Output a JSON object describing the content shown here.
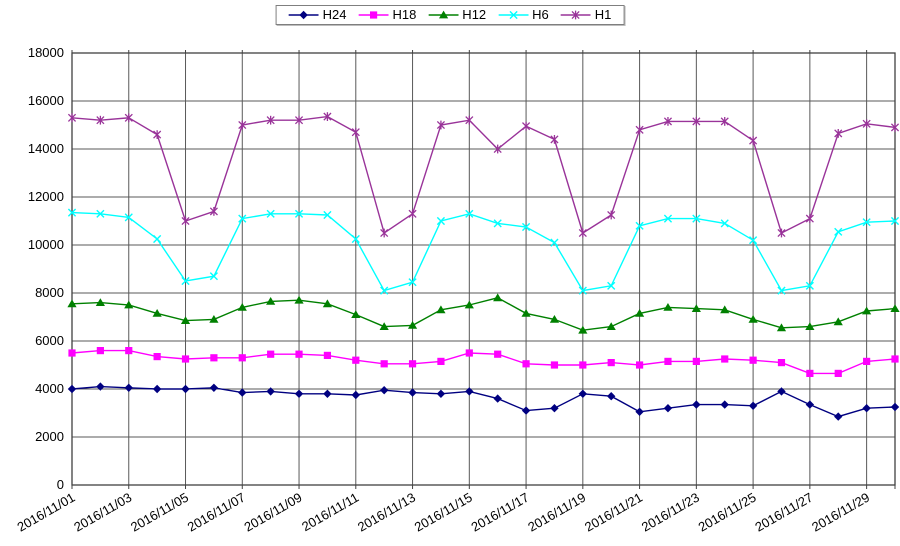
{
  "chart_data": {
    "type": "line",
    "title": "",
    "xlabel": "",
    "ylabel": "",
    "ylim": [
      0,
      18000
    ],
    "ytick_step": 2000,
    "grid": true,
    "legend_position": "top-center",
    "x_tick_every": 2,
    "x": [
      "2016/11/01",
      "2016/11/02",
      "2016/11/03",
      "2016/11/04",
      "2016/11/05",
      "2016/11/06",
      "2016/11/07",
      "2016/11/08",
      "2016/11/09",
      "2016/11/10",
      "2016/11/11",
      "2016/11/12",
      "2016/11/13",
      "2016/11/14",
      "2016/11/15",
      "2016/11/16",
      "2016/11/17",
      "2016/11/18",
      "2016/11/19",
      "2016/11/20",
      "2016/11/21",
      "2016/11/22",
      "2016/11/23",
      "2016/11/24",
      "2016/11/25",
      "2016/11/26",
      "2016/11/27",
      "2016/11/28",
      "2016/11/29",
      "2016/11/30"
    ],
    "x_labels_shown": [
      "2016/11/01",
      "2016/11/03",
      "2016/11/05",
      "2016/11/07",
      "2016/11/09",
      "2016/11/11",
      "2016/11/13",
      "2016/11/15",
      "2016/11/17",
      "2016/11/19",
      "2016/11/21",
      "2016/11/23",
      "2016/11/25",
      "2016/11/27",
      "2016/11/29"
    ],
    "series": [
      {
        "name": "H24",
        "color": "#000080",
        "marker": "diamond",
        "values": [
          4000,
          4100,
          4050,
          4000,
          4000,
          4050,
          3850,
          3900,
          3800,
          3800,
          3750,
          3950,
          3850,
          3800,
          3900,
          3600,
          3100,
          3200,
          3800,
          3700,
          3050,
          3200,
          3350,
          3350,
          3300,
          3900,
          3350,
          2850,
          3200,
          3250
        ]
      },
      {
        "name": "H18",
        "color": "#FF00FF",
        "marker": "square",
        "values": [
          5500,
          5600,
          5600,
          5350,
          5250,
          5300,
          5300,
          5450,
          5450,
          5400,
          5200,
          5050,
          5050,
          5150,
          5500,
          5450,
          5050,
          5000,
          5000,
          5100,
          5000,
          5150,
          5150,
          5250,
          5200,
          5100,
          4650,
          4650,
          5150,
          5250
        ]
      },
      {
        "name": "H12",
        "color": "#008000",
        "marker": "triangle",
        "values": [
          7550,
          7600,
          7500,
          7150,
          6850,
          6900,
          7400,
          7650,
          7700,
          7550,
          7100,
          6600,
          6650,
          7300,
          7500,
          7800,
          7150,
          6900,
          6450,
          6600,
          7150,
          7400,
          7350,
          7300,
          6900,
          6550,
          6600,
          6800,
          7250,
          7350
        ]
      },
      {
        "name": "H6",
        "color": "#00FFFF",
        "marker": "x",
        "values": [
          11350,
          11300,
          11150,
          10250,
          8500,
          8700,
          11100,
          11300,
          11300,
          11250,
          10250,
          8100,
          8450,
          11000,
          11300,
          10900,
          10750,
          10100,
          8100,
          8300,
          10800,
          11100,
          11100,
          10900,
          10200,
          8100,
          8300,
          10550,
          10950,
          11000
        ]
      },
      {
        "name": "H1",
        "color": "#993399",
        "marker": "asterisk",
        "values": [
          15300,
          15200,
          15300,
          14600,
          11000,
          11400,
          15000,
          15200,
          15200,
          15350,
          14700,
          10500,
          11300,
          15000,
          15200,
          14000,
          14950,
          14400,
          10500,
          11250,
          14800,
          15150,
          15150,
          15150,
          14350,
          10500,
          11100,
          14650,
          15050,
          14900
        ]
      }
    ],
    "colors": {
      "gridline": "#595959",
      "plot_border": "#404040",
      "text": "#000000",
      "background": "#ffffff"
    }
  }
}
